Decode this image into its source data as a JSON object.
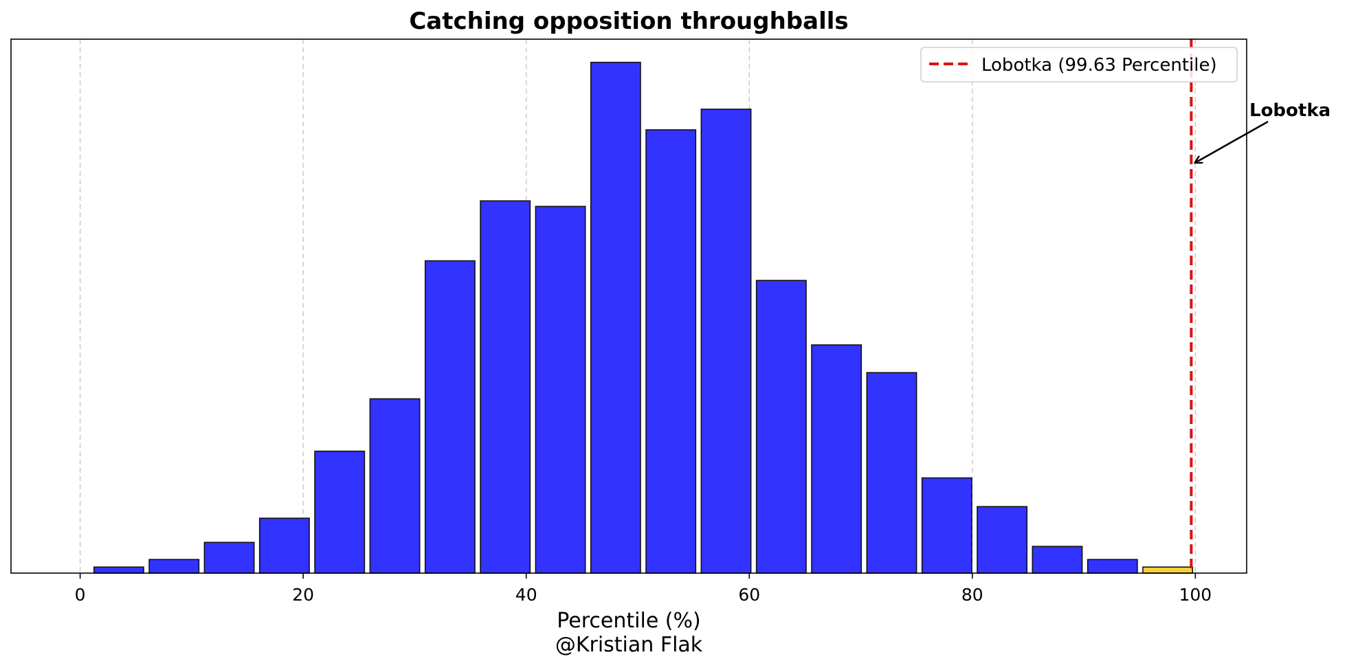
{
  "chart_data": {
    "type": "bar",
    "title": "Catching opposition throughballs",
    "xlabel": "Percentile (%)",
    "credit": "@Kristian Flak",
    "ylabel": "",
    "xlim": [
      -6.2,
      104.6
    ],
    "ylim": [
      0,
      106
    ],
    "x_ticks": [
      "0",
      "20",
      "40",
      "60",
      "80",
      "100"
    ],
    "x_tick_values": [
      0,
      20,
      40,
      60,
      80,
      100
    ],
    "grid": "vertical dashed",
    "bin_width": 4.95,
    "bar_width_fraction": 0.9,
    "bins": [
      {
        "x": 3.47,
        "value": 1.2,
        "highlight": false
      },
      {
        "x": 8.42,
        "value": 2.7,
        "highlight": false
      },
      {
        "x": 13.37,
        "value": 6.1,
        "highlight": false
      },
      {
        "x": 18.32,
        "value": 10.9,
        "highlight": false
      },
      {
        "x": 23.27,
        "value": 24.2,
        "highlight": false
      },
      {
        "x": 28.22,
        "value": 34.6,
        "highlight": false
      },
      {
        "x": 33.17,
        "value": 62.0,
        "highlight": false
      },
      {
        "x": 38.12,
        "value": 73.9,
        "highlight": false
      },
      {
        "x": 43.07,
        "value": 72.8,
        "highlight": false
      },
      {
        "x": 48.02,
        "value": 101.4,
        "highlight": false
      },
      {
        "x": 52.97,
        "value": 88.0,
        "highlight": false
      },
      {
        "x": 57.92,
        "value": 92.1,
        "highlight": false
      },
      {
        "x": 62.87,
        "value": 58.1,
        "highlight": false
      },
      {
        "x": 67.82,
        "value": 45.3,
        "highlight": false
      },
      {
        "x": 72.77,
        "value": 39.8,
        "highlight": false
      },
      {
        "x": 77.72,
        "value": 18.9,
        "highlight": false
      },
      {
        "x": 82.67,
        "value": 13.2,
        "highlight": false
      },
      {
        "x": 87.62,
        "value": 5.3,
        "highlight": false
      },
      {
        "x": 92.57,
        "value": 2.7,
        "highlight": false
      },
      {
        "x": 97.52,
        "value": 1.2,
        "highlight": true
      }
    ],
    "colors": {
      "bar": "#3333ff",
      "highlight": "#f5d13b",
      "edge": "#111111",
      "marker_line": "#dd1111",
      "grid": "#c8c8c8"
    },
    "marker": {
      "value": 99.63,
      "legend_label": "Lobotka (99.63 Percentile)",
      "annotation_label": "Lobotka",
      "arrow_target_y": 81.5
    },
    "legend_position": "top-right"
  }
}
